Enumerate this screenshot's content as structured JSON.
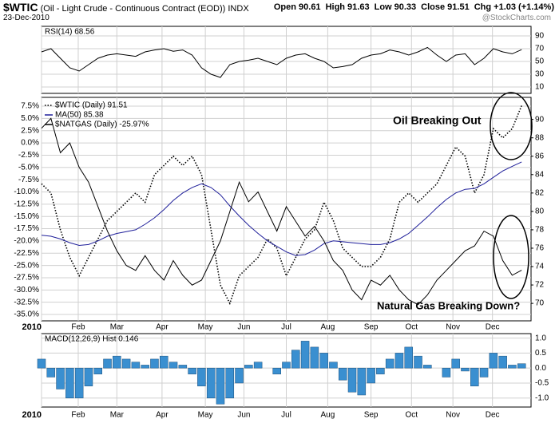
{
  "header": {
    "symbol": "$WTIC",
    "description": "(Oil - Light Crude - Continuous Contract (EOD))",
    "exchange": "INDX",
    "date": "23-Dec-2010",
    "quote": [
      "Open 90.61",
      "High 91.63",
      "Low 90.33",
      "Close 91.51",
      "Chg +1.03 (+1.14%)"
    ],
    "watermark": "@StockCharts.com"
  },
  "chart_data": [
    {
      "type": "line",
      "label": "RSI(14) 68.56",
      "x": [
        0,
        1,
        2,
        3,
        4,
        5,
        6,
        7,
        8,
        9,
        10,
        11,
        12,
        13,
        14,
        15,
        16,
        17,
        18,
        19,
        20,
        21,
        22,
        23,
        24,
        25,
        26,
        27,
        28,
        29,
        30,
        31,
        32,
        33,
        34,
        35,
        36,
        37,
        38,
        39,
        40,
        41,
        42,
        43,
        44,
        45,
        46,
        47,
        48,
        49,
        50,
        51
      ],
      "xlim": [
        0,
        52
      ],
      "xticks": [
        {
          "value": 0,
          "label": "2010"
        },
        {
          "value": 3.9,
          "label": "Feb"
        },
        {
          "value": 8.0,
          "label": "Mar"
        },
        {
          "value": 12.8,
          "label": "Apr"
        },
        {
          "value": 17.4,
          "label": "May"
        },
        {
          "value": 21.5,
          "label": "Jun"
        },
        {
          "value": 26.0,
          "label": "Jul"
        },
        {
          "value": 30.4,
          "label": "Aug"
        },
        {
          "value": 35.0,
          "label": "Sep"
        },
        {
          "value": 39.3,
          "label": "Oct"
        },
        {
          "value": 43.7,
          "label": "Nov"
        },
        {
          "value": 47.9,
          "label": "Dec"
        }
      ],
      "ylim": [
        0,
        105
      ],
      "yticks": [
        90,
        70,
        50,
        30,
        10
      ],
      "series": [
        {
          "name": "RSI(14)",
          "color": "#000000",
          "values": [
            65,
            70,
            55,
            40,
            35,
            45,
            55,
            60,
            62,
            60,
            58,
            65,
            68,
            70,
            66,
            68,
            60,
            40,
            30,
            25,
            45,
            50,
            52,
            55,
            50,
            45,
            55,
            60,
            62,
            55,
            50,
            40,
            42,
            45,
            55,
            60,
            62,
            68,
            65,
            60,
            65,
            72,
            60,
            50,
            60,
            62,
            45,
            55,
            70,
            65,
            62,
            68.56
          ]
        }
      ]
    },
    {
      "type": "line",
      "x": [
        0,
        1,
        2,
        3,
        4,
        5,
        6,
        7,
        8,
        9,
        10,
        11,
        12,
        13,
        14,
        15,
        16,
        17,
        18,
        19,
        20,
        21,
        22,
        23,
        24,
        25,
        26,
        27,
        28,
        29,
        30,
        31,
        32,
        33,
        34,
        35,
        36,
        37,
        38,
        39,
        40,
        41,
        42,
        43,
        44,
        45,
        46,
        47,
        48,
        49,
        50,
        51
      ],
      "xlim": [
        0,
        52
      ],
      "xticks": [
        {
          "value": 0,
          "label": "2010"
        },
        {
          "value": 3.9,
          "label": "Feb"
        },
        {
          "value": 8.0,
          "label": "Mar"
        },
        {
          "value": 12.8,
          "label": "Apr"
        },
        {
          "value": 17.4,
          "label": "May"
        },
        {
          "value": 21.5,
          "label": "Jun"
        },
        {
          "value": 26.0,
          "label": "Jul"
        },
        {
          "value": 30.4,
          "label": "Aug"
        },
        {
          "value": 35.0,
          "label": "Sep"
        },
        {
          "value": 39.3,
          "label": "Oct"
        },
        {
          "value": 43.7,
          "label": "Nov"
        },
        {
          "value": 47.9,
          "label": "Dec"
        }
      ],
      "ylim": [
        -36.3,
        9.3
      ],
      "yticks": [
        {
          "value": 7.5,
          "label": "7.5%"
        },
        {
          "value": 5.0,
          "label": "5.0%"
        },
        {
          "value": 2.5,
          "label": "2.5%"
        },
        {
          "value": 0.0,
          "label": "0.0%"
        },
        {
          "value": -2.5,
          "label": "-2.5%"
        },
        {
          "value": -5.0,
          "label": "-5.0%"
        },
        {
          "value": -7.5,
          "label": "-7.5%"
        },
        {
          "value": -10.0,
          "label": "-10.0%"
        },
        {
          "value": -12.5,
          "label": "-12.5%"
        },
        {
          "value": -15.0,
          "label": "-15.0%"
        },
        {
          "value": -17.5,
          "label": "-17.5%"
        },
        {
          "value": -20.0,
          "label": "-20.0%"
        },
        {
          "value": -22.5,
          "label": "-22.5%"
        },
        {
          "value": -25.0,
          "label": "-25.0%"
        },
        {
          "value": -27.5,
          "label": "-27.5%"
        },
        {
          "value": -30.0,
          "label": "-30.0%"
        },
        {
          "value": -32.5,
          "label": "-32.5%"
        },
        {
          "value": -35.0,
          "label": "-35.0%"
        }
      ],
      "y2lim": [
        68.1,
        92.4
      ],
      "y2ticks": [
        90,
        88,
        86,
        84,
        82,
        80,
        78,
        76,
        74,
        72,
        70
      ],
      "annotations": [
        "Oil Breaking Out",
        "Natural Gas Breaking Down?"
      ],
      "series": [
        {
          "name": "$WTIC (Daily) 91.51",
          "color": "#000000",
          "axis": "y2",
          "style": "dotted",
          "values": [
            83,
            82,
            78,
            75,
            73,
            75,
            77,
            79,
            80,
            81,
            82,
            81,
            84,
            85,
            86,
            85,
            86,
            84,
            78,
            72,
            70,
            73,
            74,
            75,
            77,
            76,
            73,
            75,
            77,
            78,
            81,
            79,
            76,
            75,
            74,
            74,
            75,
            77,
            81,
            82,
            81,
            82,
            83,
            85,
            87,
            86,
            82,
            84,
            89,
            88,
            89,
            91.51
          ]
        },
        {
          "name": "MA(50) 85.38",
          "color": "#1f1f9a",
          "axis": "y2",
          "style": "solid",
          "values": [
            77.4,
            77.3,
            77.0,
            76.6,
            76.3,
            76.4,
            76.8,
            77.3,
            77.6,
            77.8,
            78.0,
            78.6,
            79.3,
            80.2,
            81.2,
            82.0,
            82.6,
            83.0,
            82.6,
            81.8,
            80.6,
            79.5,
            78.5,
            77.6,
            76.8,
            76.2,
            75.6,
            75.2,
            75.3,
            75.8,
            76.5,
            76.8,
            76.7,
            76.6,
            76.5,
            76.4,
            76.4,
            76.6,
            77.0,
            77.6,
            78.5,
            79.4,
            80.4,
            81.3,
            82.0,
            82.4,
            82.5,
            83.0,
            83.7,
            84.4,
            84.9,
            85.38
          ]
        },
        {
          "name": "$NATGAS (Daily) -25.97%",
          "color": "#000000",
          "style": "solid",
          "values": [
            3,
            5,
            -2,
            0,
            -5,
            -8,
            -13,
            -18,
            -22,
            -25,
            -26,
            -23,
            -26,
            -28,
            -24,
            -27,
            -29,
            -28,
            -24,
            -20,
            -14,
            -8,
            -12,
            -10,
            -14,
            -18,
            -13,
            -16,
            -19,
            -17,
            -20,
            -24,
            -26,
            -30,
            -32,
            -28,
            -29,
            -27,
            -30,
            -32,
            -33,
            -31,
            -28,
            -26,
            -24,
            -22,
            -21,
            -18,
            -19,
            -24,
            -27,
            -25.97
          ]
        }
      ]
    },
    {
      "type": "bar",
      "label": "MACD(12,26,9) Hist 0.146",
      "color": "#3a8fd0",
      "x": [
        0,
        1,
        2,
        3,
        4,
        5,
        6,
        7,
        8,
        9,
        10,
        11,
        12,
        13,
        14,
        15,
        16,
        17,
        18,
        19,
        20,
        21,
        22,
        23,
        24,
        25,
        26,
        27,
        28,
        29,
        30,
        31,
        32,
        33,
        34,
        35,
        36,
        37,
        38,
        39,
        40,
        41,
        42,
        43,
        44,
        45,
        46,
        47,
        48,
        49,
        50,
        51
      ],
      "xlim": [
        0,
        52
      ],
      "xticks": [
        {
          "value": 0,
          "label": "2010"
        },
        {
          "value": 3.9,
          "label": "Feb"
        },
        {
          "value": 8.0,
          "label": "Mar"
        },
        {
          "value": 12.8,
          "label": "Apr"
        },
        {
          "value": 17.4,
          "label": "May"
        },
        {
          "value": 21.5,
          "label": "Jun"
        },
        {
          "value": 26.0,
          "label": "Jul"
        },
        {
          "value": 30.4,
          "label": "Aug"
        },
        {
          "value": 35.0,
          "label": "Sep"
        },
        {
          "value": 39.3,
          "label": "Oct"
        },
        {
          "value": 43.7,
          "label": "Nov"
        },
        {
          "value": 47.9,
          "label": "Dec"
        }
      ],
      "ylim": [
        -1.3,
        1.15
      ],
      "yticks": [
        {
          "value": 1.0,
          "label": "1.0"
        },
        {
          "value": 0.5,
          "label": "0.5"
        },
        {
          "value": 0.0,
          "label": "0.0"
        },
        {
          "value": -0.5,
          "label": "-0.5"
        },
        {
          "value": -1.0,
          "label": "-1.0"
        }
      ],
      "values": [
        0.3,
        -0.3,
        -0.7,
        -1.0,
        -1.0,
        -0.6,
        -0.2,
        0.3,
        0.4,
        0.3,
        0.2,
        0.1,
        0.3,
        0.4,
        0.2,
        0.1,
        -0.2,
        -0.6,
        -1.0,
        -1.2,
        -1.0,
        -0.5,
        0.1,
        0.2,
        0.0,
        -0.2,
        0.2,
        0.6,
        0.9,
        0.7,
        0.5,
        0.2,
        -0.4,
        -0.8,
        -0.9,
        -0.5,
        -0.2,
        0.3,
        0.5,
        0.7,
        0.4,
        0.1,
        0.0,
        -0.3,
        0.3,
        -0.1,
        -0.6,
        -0.3,
        0.5,
        0.4,
        0.1,
        0.146
      ]
    }
  ]
}
